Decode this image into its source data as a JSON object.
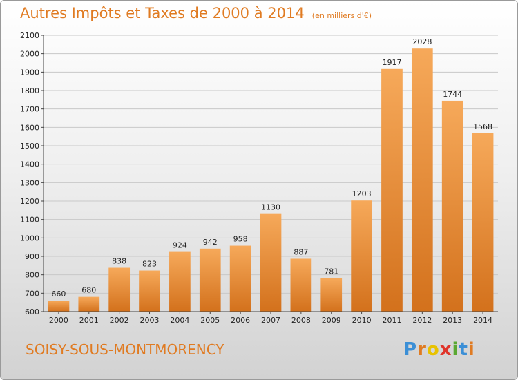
{
  "header": {
    "title": "Autres Impôts et Taxes de 2000 à 2014",
    "unit_note": "(en milliers d'€)"
  },
  "footer": {
    "city": "SOISY-SOUS-MONTMORENCY",
    "logo": "Proxiti"
  },
  "colors": {
    "accent": "#e07b22",
    "bar_light": "#f6a95a",
    "bar_dark": "#d3711c"
  },
  "chart_data": {
    "type": "bar",
    "title": "Autres Impôts et Taxes de 2000 à 2014",
    "subtitle": "(en milliers d'€)",
    "xlabel": "",
    "ylabel": "",
    "categories": [
      "2000",
      "2001",
      "2002",
      "2003",
      "2004",
      "2005",
      "2006",
      "2007",
      "2008",
      "2009",
      "2010",
      "2011",
      "2012",
      "2013",
      "2014"
    ],
    "values": [
      660,
      680,
      838,
      823,
      924,
      942,
      958,
      1130,
      887,
      781,
      1203,
      1917,
      2028,
      1744,
      1568
    ],
    "ylim": [
      600,
      2100
    ],
    "yticks": [
      600,
      700,
      800,
      900,
      1000,
      1100,
      1200,
      1300,
      1400,
      1500,
      1600,
      1700,
      1800,
      1900,
      2000,
      2100
    ],
    "grid": true
  }
}
